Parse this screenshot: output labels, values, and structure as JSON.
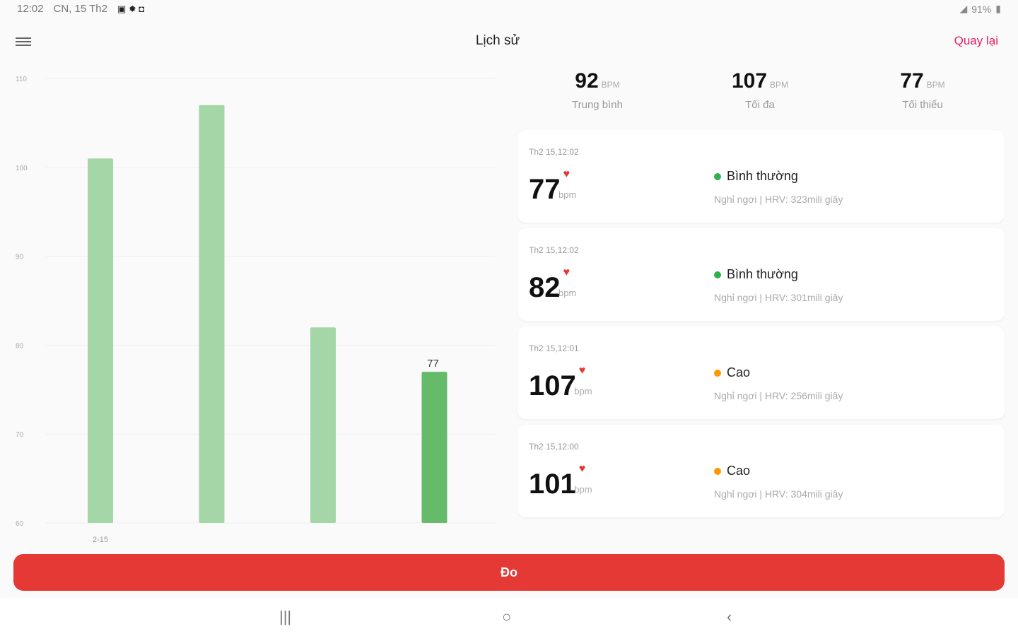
{
  "status_bar": {
    "time": "12:02",
    "date": "CN, 15 Th2",
    "battery": "91%"
  },
  "header": {
    "title": "Lịch sử",
    "back_label": "Quay lại"
  },
  "summary": [
    {
      "value": "92",
      "unit": "BPM",
      "label": "Trung bình"
    },
    {
      "value": "107",
      "unit": "BPM",
      "label": "Tối đa"
    },
    {
      "value": "77",
      "unit": "BPM",
      "label": "Tối thiểu"
    }
  ],
  "records": [
    {
      "time": "Th2 15,12:02",
      "bpm": "77",
      "unit": "bpm",
      "status": "Bình thường",
      "status_color": "#2db24a",
      "detail": "Nghỉ ngơi | HRV: 323mili giây"
    },
    {
      "time": "Th2 15,12:02",
      "bpm": "82",
      "unit": "bpm",
      "status": "Bình thường",
      "status_color": "#2db24a",
      "detail": "Nghỉ ngơi | HRV: 301mili giây"
    },
    {
      "time": "Th2 15,12:01",
      "bpm": "107",
      "unit": "bpm",
      "status": "Cao",
      "status_color": "#ff9800",
      "detail": "Nghỉ ngơi | HRV: 256mili giây"
    },
    {
      "time": "Th2 15,12:00",
      "bpm": "101",
      "unit": "bpm",
      "status": "Cao",
      "status_color": "#ff9800",
      "detail": "Nghỉ ngơi | HRV: 304mili giây"
    }
  ],
  "measure_label": "Đo",
  "chart_data": {
    "type": "bar",
    "categories": [
      "2-15",
      "",
      "",
      ""
    ],
    "values": [
      101,
      107,
      82,
      77
    ],
    "ylim": [
      60,
      110
    ],
    "yticks": [
      110,
      100,
      90,
      80,
      70,
      60
    ],
    "highlight_index": 3,
    "highlight_label": "77",
    "grid": true,
    "colors": {
      "bar": "#a5d6a7",
      "highlight": "#66bb6a"
    }
  }
}
